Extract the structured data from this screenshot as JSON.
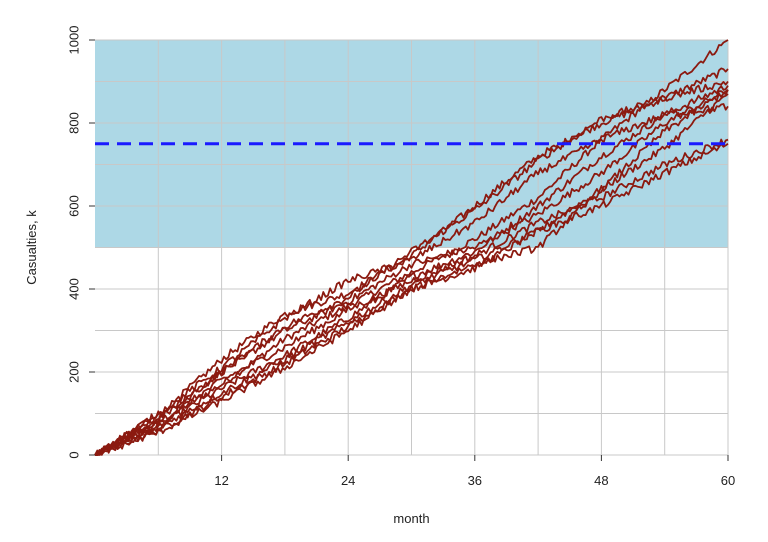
{
  "chart_data": {
    "type": "line",
    "title": "",
    "xlabel": "month",
    "ylabel": "Casualties, k",
    "xlim": [
      0,
      60
    ],
    "ylim": [
      0,
      1000
    ],
    "x_ticks": [
      12,
      24,
      36,
      48,
      60
    ],
    "y_ticks": [
      0,
      200,
      400,
      600,
      800,
      1000
    ],
    "grid": true,
    "x_grid_step": 6,
    "y_grid_step": 100,
    "shaded_band": {
      "y_from": 500,
      "y_to": 1000,
      "color": "#add8e6"
    },
    "threshold_line": {
      "y": 750,
      "color": "#1a1aff",
      "style": "dashed"
    },
    "line_color": "#8b1a10",
    "series": [
      {
        "x": [
          0,
          6,
          12,
          18,
          24,
          30,
          36,
          42,
          48,
          54,
          60
        ],
        "values": [
          0,
          80,
          170,
          280,
          360,
          440,
          520,
          620,
          760,
          880,
          1000
        ]
      },
      {
        "x": [
          0,
          6,
          12,
          18,
          24,
          30,
          36,
          42,
          48,
          54,
          60
        ],
        "values": [
          0,
          95,
          230,
          340,
          390,
          480,
          600,
          720,
          800,
          860,
          930
        ]
      },
      {
        "x": [
          0,
          6,
          12,
          18,
          24,
          30,
          36,
          42,
          48,
          54,
          60
        ],
        "values": [
          0,
          70,
          160,
          240,
          330,
          430,
          490,
          600,
          720,
          820,
          890
        ]
      },
      {
        "x": [
          0,
          6,
          12,
          18,
          24,
          30,
          36,
          42,
          48,
          54,
          60
        ],
        "values": [
          0,
          90,
          200,
          300,
          370,
          460,
          500,
          580,
          680,
          800,
          880
        ]
      },
      {
        "x": [
          0,
          6,
          12,
          18,
          24,
          30,
          36,
          42,
          48,
          54,
          60
        ],
        "values": [
          0,
          60,
          140,
          220,
          310,
          400,
          450,
          540,
          640,
          740,
          870
        ]
      },
      {
        "x": [
          0,
          6,
          12,
          18,
          24,
          30,
          36,
          42,
          48,
          54,
          60
        ],
        "values": [
          0,
          75,
          180,
          260,
          350,
          420,
          480,
          560,
          620,
          700,
          760
        ]
      },
      {
        "x": [
          0,
          6,
          12,
          18,
          24,
          30,
          36,
          42,
          48,
          54,
          60
        ],
        "values": [
          0,
          85,
          200,
          310,
          380,
          490,
          590,
          710,
          810,
          860,
          900
        ]
      },
      {
        "x": [
          0,
          6,
          12,
          18,
          24,
          30,
          36,
          42,
          48,
          54,
          60
        ],
        "values": [
          0,
          65,
          150,
          230,
          320,
          410,
          470,
          540,
          600,
          680,
          750
        ]
      },
      {
        "x": [
          0,
          6,
          12,
          18,
          24,
          30,
          36,
          42,
          48,
          54,
          60
        ],
        "values": [
          0,
          100,
          210,
          330,
          420,
          470,
          560,
          680,
          760,
          820,
          840
        ]
      },
      {
        "x": [
          0,
          6,
          12,
          18,
          24,
          30,
          36,
          42,
          48,
          54,
          60
        ],
        "values": [
          0,
          55,
          130,
          210,
          300,
          400,
          460,
          500,
          640,
          780,
          880
        ]
      }
    ]
  }
}
